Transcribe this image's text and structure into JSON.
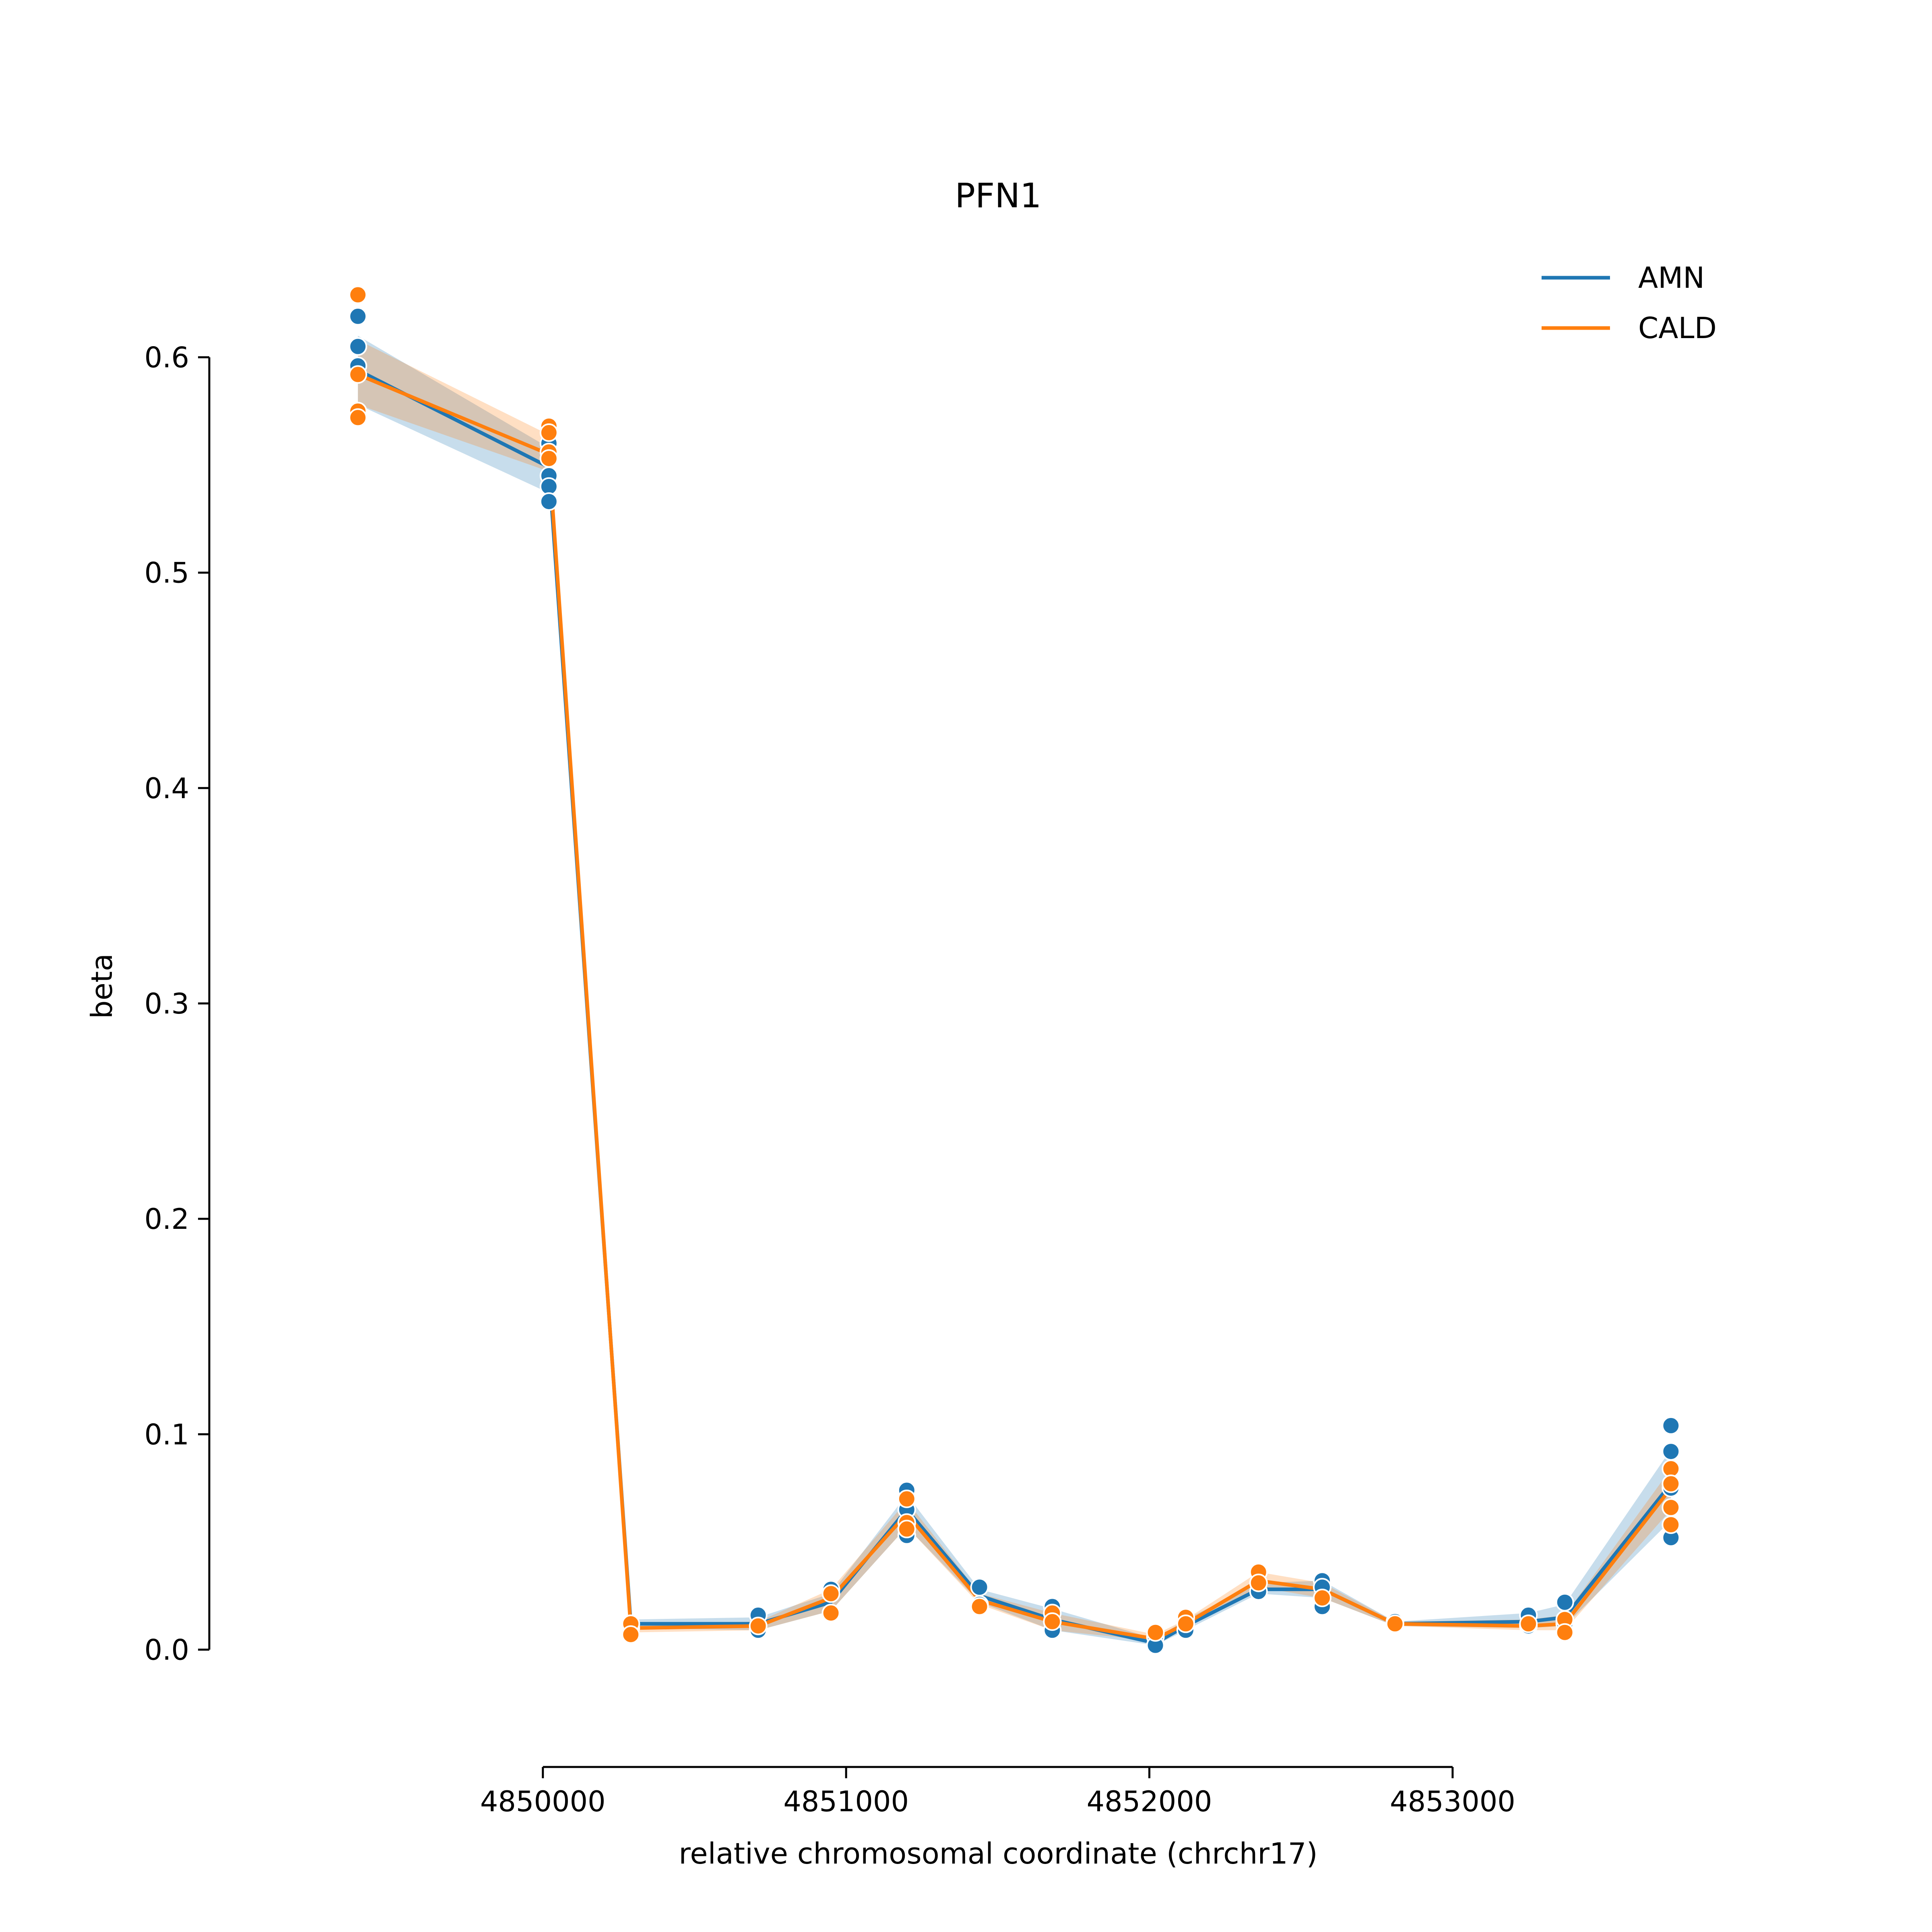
{
  "chart_data": {
    "type": "line",
    "title": "PFN1",
    "xlabel": "relative chromosomal coordinate (chrchr17)",
    "ylabel": "beta",
    "xlim": [
      4848900,
      4854050
    ],
    "ylim": [
      -0.047,
      0.65
    ],
    "xticks": [
      4850000,
      4851000,
      4852000,
      4853000
    ],
    "xtick_labels": [
      "4850000",
      "4851000",
      "4852000",
      "4853000"
    ],
    "yticks": [
      0.0,
      0.1,
      0.2,
      0.3,
      0.4,
      0.5,
      0.6
    ],
    "ytick_labels": [
      "0.0",
      "0.1",
      "0.2",
      "0.3",
      "0.4",
      "0.5",
      "0.6"
    ],
    "grid": false,
    "legend": {
      "location": "top-right",
      "entries": [
        "AMN",
        "CALD"
      ]
    },
    "series": [
      {
        "name": "AMN",
        "color": "#1f77b4",
        "x": [
          4849390,
          4850020,
          4850290,
          4850710,
          4850950,
          4851200,
          4851440,
          4851680,
          4852020,
          4852120,
          4852360,
          4852570,
          4852810,
          4853250,
          4853370,
          4853720
        ],
        "y": [
          0.594,
          0.549,
          0.012,
          0.012,
          0.022,
          0.065,
          0.025,
          0.014,
          0.003,
          0.011,
          0.028,
          0.028,
          0.012,
          0.013,
          0.015,
          0.077
        ],
        "band_low": [
          0.578,
          0.537,
          0.01,
          0.009,
          0.018,
          0.057,
          0.022,
          0.009,
          0.002,
          0.009,
          0.026,
          0.024,
          0.011,
          0.01,
          0.011,
          0.06
        ],
        "band_high": [
          0.61,
          0.558,
          0.014,
          0.015,
          0.026,
          0.072,
          0.028,
          0.019,
          0.005,
          0.014,
          0.031,
          0.032,
          0.013,
          0.017,
          0.021,
          0.093
        ],
        "points_x": [
          4849390,
          4849390,
          4849390,
          4849390,
          4850020,
          4850020,
          4850020,
          4850020,
          4850290,
          4850290,
          4850710,
          4850710,
          4850950,
          4850950,
          4851200,
          4851200,
          4851200,
          4851440,
          4851440,
          4851680,
          4851680,
          4851680,
          4852020,
          4852020,
          4852120,
          4852120,
          4852360,
          4852360,
          4852570,
          4852570,
          4852570,
          4852810,
          4853250,
          4853250,
          4853370,
          4853370,
          4853720,
          4853720,
          4853720,
          4853720
        ],
        "points_y": [
          0.619,
          0.605,
          0.596,
          0.574,
          0.56,
          0.545,
          0.54,
          0.533,
          0.012,
          0.01,
          0.016,
          0.009,
          0.028,
          0.017,
          0.074,
          0.065,
          0.053,
          0.029,
          0.021,
          0.02,
          0.013,
          0.009,
          0.006,
          0.002,
          0.013,
          0.009,
          0.031,
          0.027,
          0.032,
          0.029,
          0.02,
          0.013,
          0.016,
          0.011,
          0.022,
          0.012,
          0.104,
          0.092,
          0.075,
          0.052
        ]
      },
      {
        "name": "CALD",
        "color": "#ff7f0e",
        "x": [
          4849390,
          4850020,
          4850290,
          4850710,
          4850950,
          4851200,
          4851440,
          4851680,
          4852020,
          4852120,
          4852360,
          4852570,
          4852810,
          4853250,
          4853370,
          4853720
        ],
        "y": [
          0.592,
          0.555,
          0.01,
          0.011,
          0.024,
          0.063,
          0.023,
          0.013,
          0.005,
          0.012,
          0.032,
          0.028,
          0.012,
          0.011,
          0.012,
          0.075
        ],
        "band_low": [
          0.578,
          0.547,
          0.008,
          0.009,
          0.018,
          0.057,
          0.021,
          0.009,
          0.004,
          0.01,
          0.029,
          0.024,
          0.011,
          0.009,
          0.009,
          0.065
        ],
        "band_high": [
          0.608,
          0.564,
          0.012,
          0.013,
          0.028,
          0.069,
          0.026,
          0.017,
          0.007,
          0.014,
          0.036,
          0.031,
          0.013,
          0.014,
          0.016,
          0.084
        ],
        "points_x": [
          4849390,
          4849390,
          4849390,
          4849390,
          4850020,
          4850020,
          4850020,
          4850020,
          4850290,
          4850290,
          4850710,
          4850950,
          4850950,
          4851200,
          4851200,
          4851200,
          4851440,
          4851680,
          4851680,
          4852020,
          4852120,
          4852120,
          4852360,
          4852360,
          4852570,
          4852810,
          4853250,
          4853370,
          4853370,
          4853720,
          4853720,
          4853720,
          4853720
        ],
        "points_y": [
          0.629,
          0.592,
          0.575,
          0.572,
          0.568,
          0.565,
          0.556,
          0.553,
          0.012,
          0.007,
          0.011,
          0.026,
          0.017,
          0.07,
          0.059,
          0.056,
          0.02,
          0.017,
          0.013,
          0.008,
          0.015,
          0.012,
          0.036,
          0.031,
          0.024,
          0.012,
          0.012,
          0.014,
          0.008,
          0.084,
          0.077,
          0.066,
          0.058
        ]
      }
    ]
  }
}
